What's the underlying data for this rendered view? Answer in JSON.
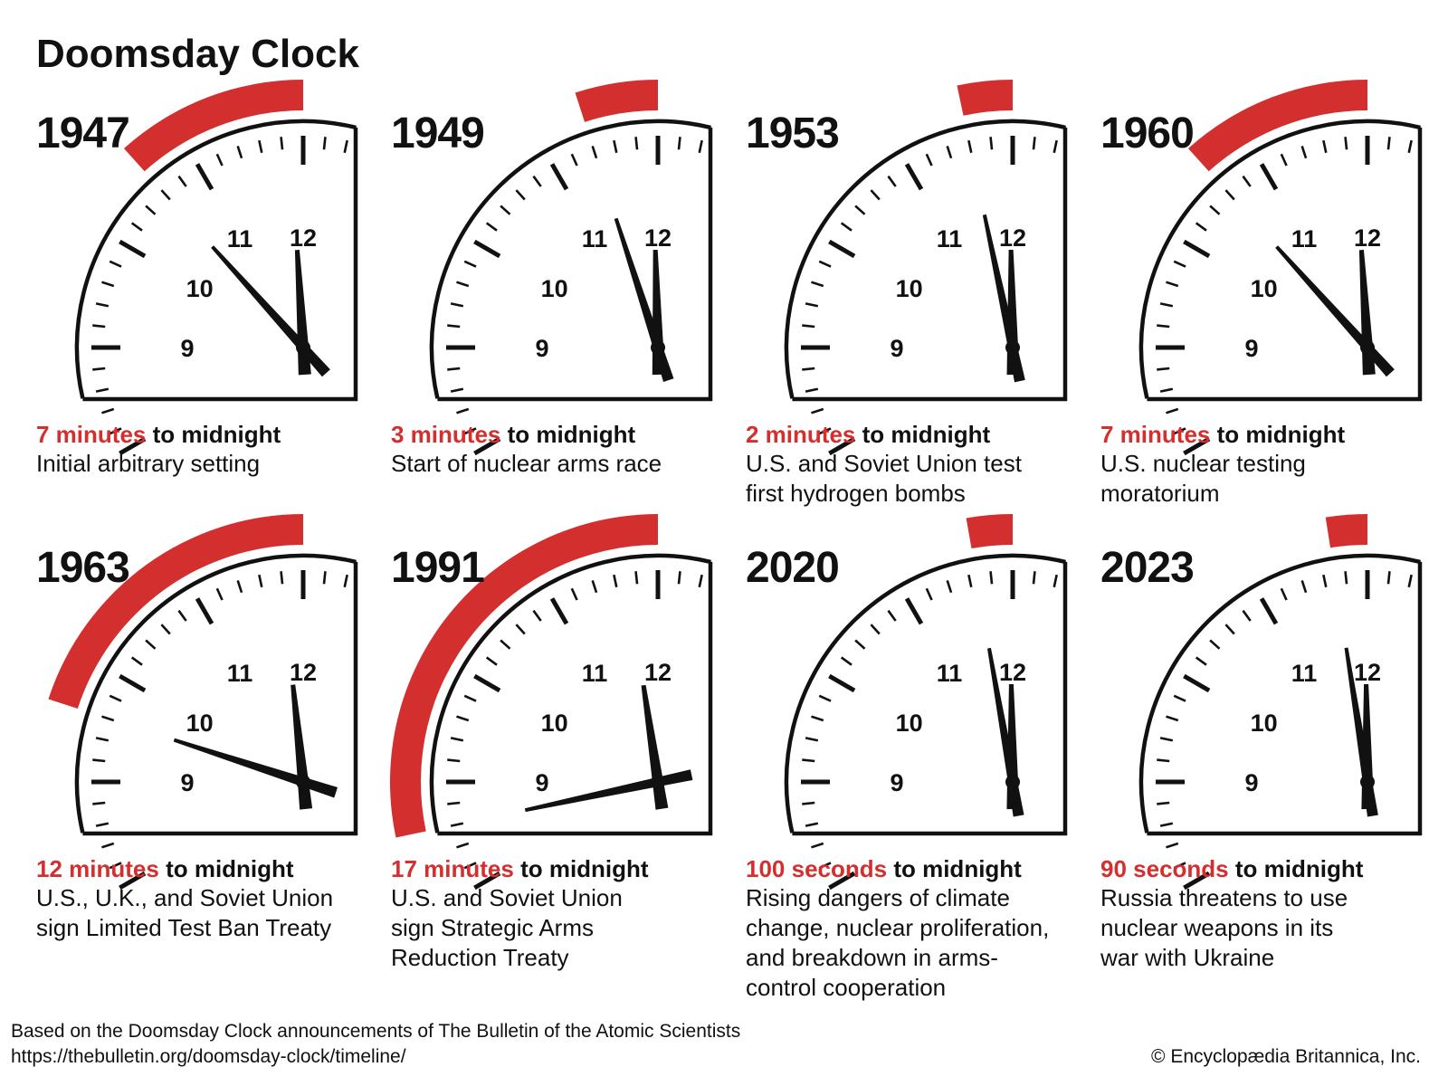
{
  "title": "Doomsday Clock",
  "colors": {
    "danger_arc": "#d32f2f",
    "ink": "#111111",
    "background": "#ffffff"
  },
  "clocks": [
    {
      "year": "1947",
      "amount": "7 minutes",
      "suffix": "to midnight",
      "description": [
        "Initial arbitrary setting"
      ],
      "seconds_to_midnight": 420
    },
    {
      "year": "1949",
      "amount": "3 minutes",
      "suffix": "to midnight",
      "description": [
        "Start of nuclear arms race"
      ],
      "seconds_to_midnight": 180
    },
    {
      "year": "1953",
      "amount": "2 minutes",
      "suffix": "to midnight",
      "description": [
        "U.S. and Soviet Union test",
        "first hydrogen bombs"
      ],
      "seconds_to_midnight": 120
    },
    {
      "year": "1960",
      "amount": "7 minutes",
      "suffix": "to midnight",
      "description": [
        "U.S. nuclear testing",
        "moratorium"
      ],
      "seconds_to_midnight": 420
    },
    {
      "year": "1963",
      "amount": "12 minutes",
      "suffix": "to midnight",
      "description": [
        "U.S., U.K., and Soviet Union",
        "sign Limited Test Ban Treaty"
      ],
      "seconds_to_midnight": 720
    },
    {
      "year": "1991",
      "amount": "17 minutes",
      "suffix": "to midnight",
      "description": [
        "U.S. and Soviet Union",
        "sign Strategic Arms",
        "Reduction Treaty"
      ],
      "seconds_to_midnight": 1020
    },
    {
      "year": "2020",
      "amount": "100 seconds",
      "suffix": "to midnight",
      "description": [
        "Rising dangers of climate",
        "change, nuclear proliferation,",
        "and breakdown in arms-",
        "control cooperation"
      ],
      "seconds_to_midnight": 100
    },
    {
      "year": "2023",
      "amount": "90 seconds",
      "suffix": "to midnight",
      "description": [
        "Russia threatens to use",
        "nuclear weapons in its",
        "war with Ukraine"
      ],
      "seconds_to_midnight": 90
    }
  ],
  "dial_numbers": [
    "12",
    "11",
    "10",
    "9"
  ],
  "footer": {
    "source": "Based on the Doomsday Clock announcements of The Bulletin of the Atomic Scientists",
    "url": "https://thebulletin.org/doomsday-clock/timeline/",
    "copyright": "© Encyclopædia Britannica, Inc."
  }
}
